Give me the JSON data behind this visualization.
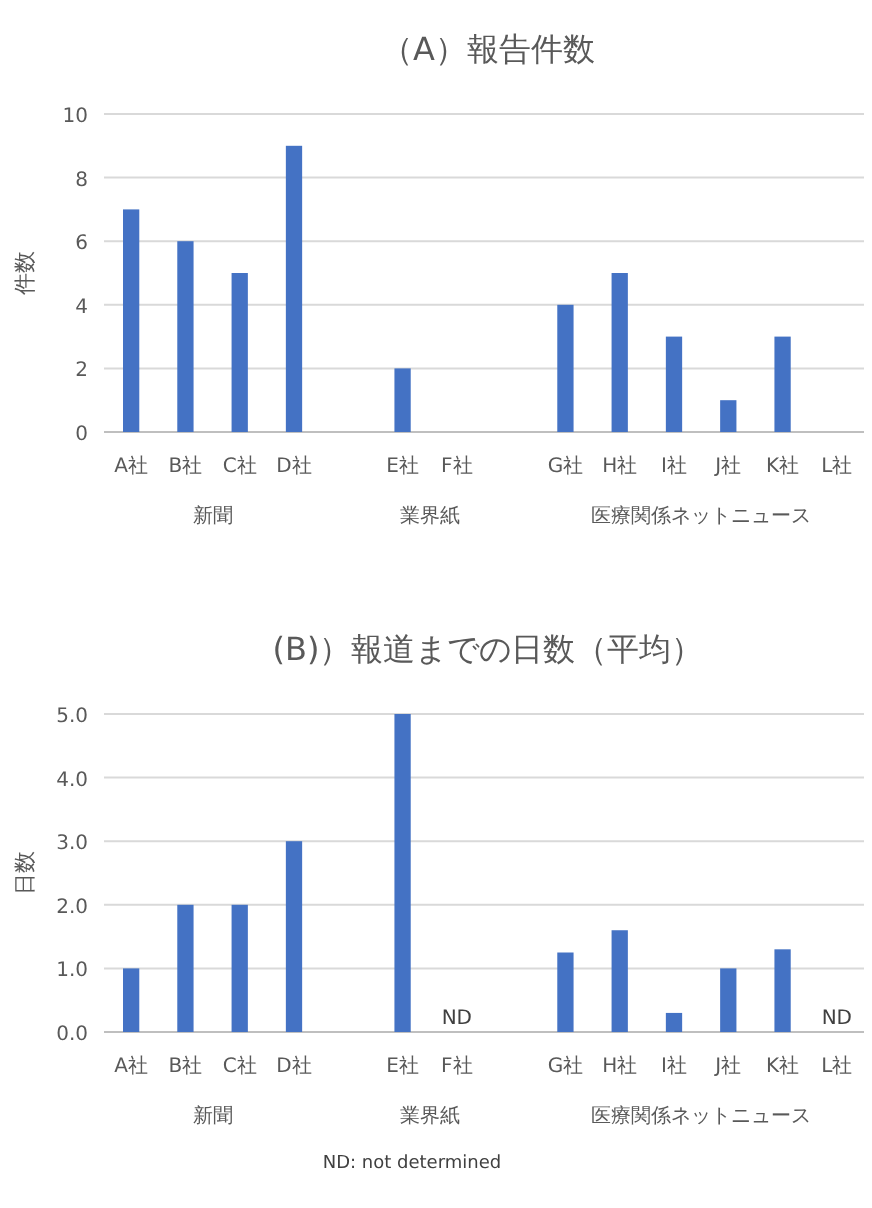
{
  "chart_data": [
    {
      "type": "bar",
      "title": "（A）報告件数",
      "ylabel": "件数",
      "categories": [
        "A社",
        "B社",
        "C社",
        "D社",
        null,
        "E社",
        "F社",
        null,
        "G社",
        "H社",
        "I社",
        "J社",
        "K社",
        "L社"
      ],
      "values": [
        7,
        6,
        5,
        9,
        null,
        2,
        0,
        null,
        4,
        5,
        3,
        1,
        3,
        0
      ],
      "color": "#4472c4",
      "ylim": [
        0,
        10
      ],
      "yticks": [
        0,
        2,
        4,
        6,
        8,
        10
      ],
      "grid": "y",
      "annotations": [
        "新聞",
        "業界紙",
        "医療関係ネットニュース"
      ]
    },
    {
      "type": "bar",
      "title": "(B)）報道までの日数（平均）",
      "ylabel": "日数",
      "categories": [
        "A社",
        "B社",
        "C社",
        "D社",
        null,
        "E社",
        "F社",
        null,
        "G社",
        "H社",
        "I社",
        "J社",
        "K社",
        "L社"
      ],
      "values": [
        1,
        2,
        2,
        3,
        null,
        5,
        null,
        null,
        1.25,
        1.6,
        0.3,
        1,
        1.3,
        null
      ],
      "color": "#4472c4",
      "value_labels": [
        null,
        null,
        null,
        null,
        null,
        null,
        "ND",
        null,
        null,
        null,
        null,
        null,
        null,
        "ND"
      ],
      "ylim": [
        0,
        5
      ],
      "yticks": [
        {
          "value": 0,
          "label": "0.0"
        },
        {
          "value": 1,
          "label": "1.0"
        },
        {
          "value": 2,
          "label": "2.0"
        },
        {
          "value": 3,
          "label": "3.0"
        },
        {
          "value": 4,
          "label": "4.0"
        },
        {
          "value": 5,
          "label": "5.0"
        }
      ],
      "grid": "y",
      "annotations": [
        "新聞",
        "業界紙",
        "医療関係ネットニュース",
        "ND: not determined"
      ]
    }
  ]
}
